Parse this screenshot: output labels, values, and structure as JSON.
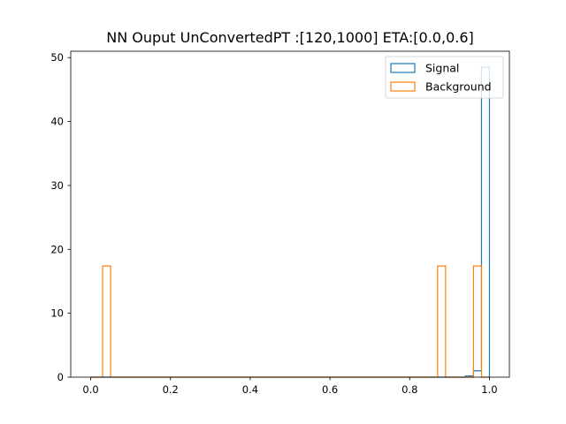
{
  "chart_data": {
    "type": "histogram",
    "title": "NN Ouput UnConvertedPT :[120,1000] ETA:[0.0,0.6]",
    "xlabel": "",
    "ylabel": "",
    "xlim": [
      -0.05,
      1.05
    ],
    "ylim": [
      0,
      51
    ],
    "x_ticks": [
      "0.0",
      "0.2",
      "0.4",
      "0.6",
      "0.8",
      "1.0"
    ],
    "y_ticks": [
      "0",
      "10",
      "20",
      "30",
      "40",
      "50"
    ],
    "grid": false,
    "legend_position": "top-right",
    "series": [
      {
        "name": "Signal",
        "color": "#1f77b4",
        "edges": [
          0.0,
          0.94,
          0.96,
          0.98,
          1.0
        ],
        "values": [
          0,
          0.2,
          1.0,
          48.5
        ]
      },
      {
        "name": "Background",
        "color": "#ff7f0e",
        "edges": [
          0.0,
          0.03,
          0.05,
          0.87,
          0.89,
          0.96,
          0.98,
          1.0
        ],
        "values": [
          0,
          17.4,
          0,
          17.4,
          0,
          17.4,
          0
        ]
      }
    ]
  }
}
